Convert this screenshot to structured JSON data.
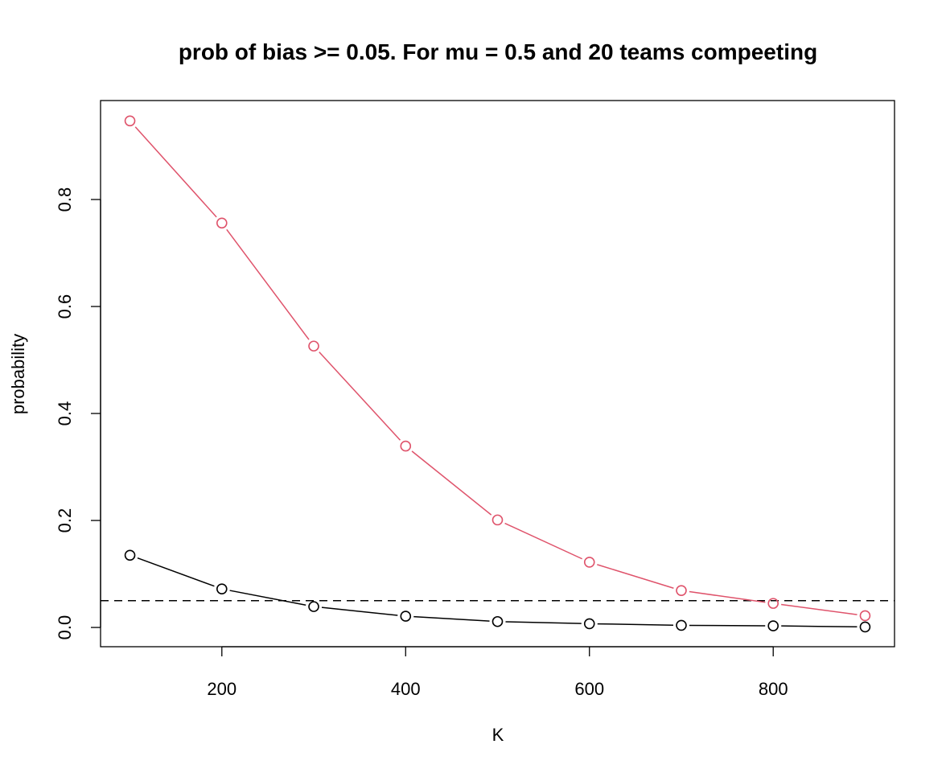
{
  "chart_data": {
    "type": "line",
    "title": "prob of bias >= 0.05. For mu = 0.5 and 20 teams compeeting",
    "xlabel": "K",
    "ylabel": "probability",
    "x": [
      100,
      200,
      300,
      400,
      500,
      600,
      700,
      800,
      900
    ],
    "xlim": [
      68,
      932
    ],
    "ylim": [
      -0.036,
      0.985
    ],
    "xticks": [
      200,
      400,
      600,
      800
    ],
    "xtick_labels": [
      "200",
      "400",
      "600",
      "800"
    ],
    "yticks": [
      0.0,
      0.2,
      0.4,
      0.6,
      0.8
    ],
    "ytick_labels": [
      "0.0",
      "0.2",
      "0.4",
      "0.6",
      "0.8"
    ],
    "grid": false,
    "series": [
      {
        "color": "#DF536B",
        "values": [
          0.947,
          0.756,
          0.526,
          0.339,
          0.201,
          0.122,
          0.069,
          0.045,
          0.022
        ]
      },
      {
        "color": "#000000",
        "values": [
          0.135,
          0.072,
          0.039,
          0.021,
          0.011,
          0.007,
          0.004,
          0.003,
          0.001
        ]
      }
    ],
    "reference_line": {
      "y": 0.05,
      "style": "dashed",
      "color": "#000000"
    }
  }
}
